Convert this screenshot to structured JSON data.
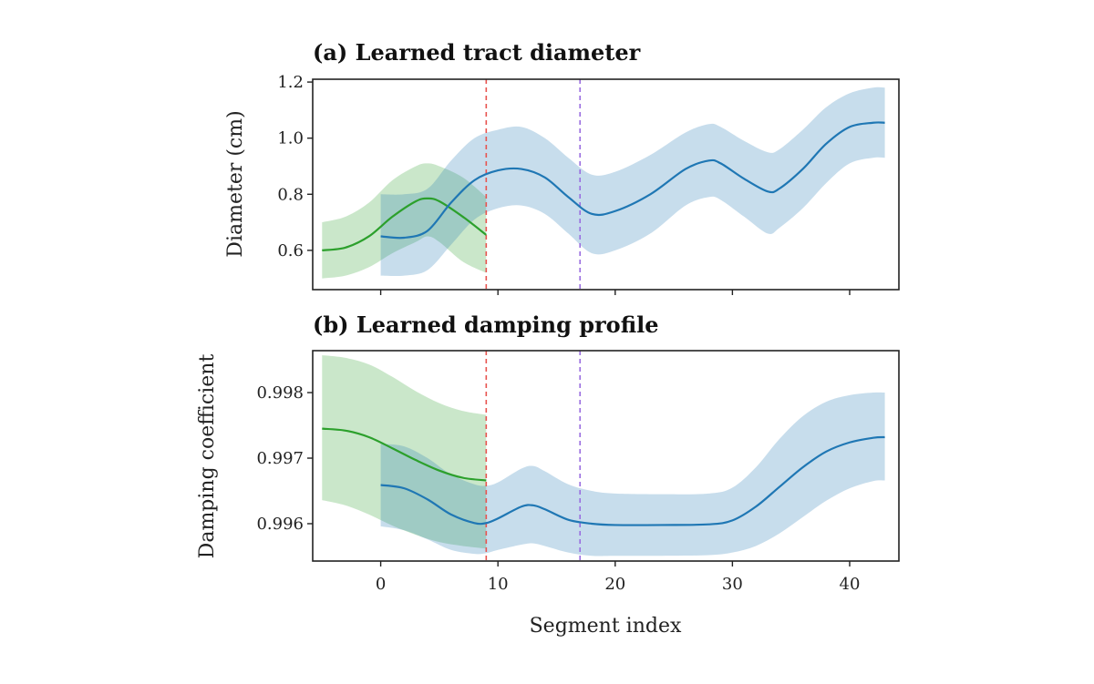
{
  "chart_data": [
    {
      "type": "line",
      "title": "(a) Learned tract diameter",
      "xlabel": "",
      "ylabel": "Diameter (cm)",
      "xlim": [
        -5.8,
        44.2
      ],
      "ylim": [
        0.46,
        1.21
      ],
      "xticks": [
        0,
        10,
        20,
        30,
        40
      ],
      "show_xtick_labels": false,
      "yticks": [
        0.6,
        0.8,
        1.0,
        1.2
      ],
      "ytick_labels": [
        "0.6",
        "0.8",
        "1.0",
        "1.2"
      ],
      "grid": false,
      "vlines": [
        {
          "x": 9,
          "color": "#e8534f"
        },
        {
          "x": 17,
          "color": "#9a6ee0"
        }
      ],
      "series": [
        {
          "color": "#2ca02c",
          "x": [
            -5,
            -3,
            -1,
            1,
            3,
            4,
            5,
            7,
            9
          ],
          "y": [
            0.6,
            0.61,
            0.65,
            0.72,
            0.775,
            0.785,
            0.775,
            0.72,
            0.655
          ],
          "lower": [
            0.5,
            0.51,
            0.54,
            0.59,
            0.63,
            0.65,
            0.63,
            0.56,
            0.52
          ],
          "upper": [
            0.7,
            0.72,
            0.77,
            0.85,
            0.9,
            0.91,
            0.9,
            0.86,
            0.79
          ]
        },
        {
          "color": "#1f77b4",
          "x": [
            0,
            2,
            4,
            6,
            8,
            10,
            12,
            14,
            16,
            18,
            20,
            23,
            26,
            28,
            29,
            31,
            33,
            34,
            36,
            38,
            40,
            42,
            43
          ],
          "y": [
            0.65,
            0.645,
            0.67,
            0.77,
            0.85,
            0.885,
            0.89,
            0.86,
            0.79,
            0.73,
            0.74,
            0.8,
            0.89,
            0.92,
            0.91,
            0.855,
            0.81,
            0.82,
            0.89,
            0.98,
            1.04,
            1.055,
            1.055
          ],
          "lower": [
            0.51,
            0.51,
            0.53,
            0.62,
            0.71,
            0.75,
            0.76,
            0.73,
            0.66,
            0.59,
            0.6,
            0.66,
            0.76,
            0.79,
            0.78,
            0.72,
            0.66,
            0.68,
            0.75,
            0.84,
            0.91,
            0.93,
            0.93
          ],
          "upper": [
            0.8,
            0.8,
            0.82,
            0.92,
            1.0,
            1.03,
            1.04,
            1.0,
            0.93,
            0.87,
            0.88,
            0.94,
            1.02,
            1.05,
            1.04,
            0.99,
            0.95,
            0.96,
            1.03,
            1.11,
            1.16,
            1.18,
            1.18
          ]
        }
      ]
    },
    {
      "type": "line",
      "title": "(b) Learned damping profile",
      "xlabel": "Segment index",
      "ylabel": "Damping coefficient",
      "xlim": [
        -5.8,
        44.2
      ],
      "ylim": [
        0.99543,
        0.99864
      ],
      "xticks": [
        0,
        10,
        20,
        30,
        40
      ],
      "xtick_labels": [
        "0",
        "10",
        "20",
        "30",
        "40"
      ],
      "show_xtick_labels": true,
      "yticks": [
        0.996,
        0.997,
        0.998
      ],
      "ytick_labels": [
        "0.996",
        "0.997",
        "0.998"
      ],
      "grid": false,
      "vlines": [
        {
          "x": 9,
          "color": "#e8534f"
        },
        {
          "x": 17,
          "color": "#9a6ee0"
        }
      ],
      "series": [
        {
          "color": "#2ca02c",
          "x": [
            -5,
            -3,
            -1,
            1,
            3,
            5,
            7,
            9
          ],
          "y": [
            0.99745,
            0.99742,
            0.99732,
            0.99715,
            0.99697,
            0.99681,
            0.9967,
            0.99666
          ],
          "lower": [
            0.99636,
            0.99628,
            0.99614,
            0.99597,
            0.99583,
            0.99572,
            0.99566,
            0.99562
          ],
          "upper": [
            0.99857,
            0.99853,
            0.99843,
            0.99824,
            0.99802,
            0.99784,
            0.99772,
            0.99766
          ]
        },
        {
          "color": "#1f77b4",
          "x": [
            0,
            2,
            4,
            6,
            8,
            9,
            10,
            12,
            13,
            14,
            16,
            18,
            20,
            24,
            28,
            30,
            32,
            34,
            36,
            38,
            40,
            42,
            43
          ],
          "y": [
            0.99659,
            0.99654,
            0.99637,
            0.99614,
            0.99601,
            0.99601,
            0.99608,
            0.99626,
            0.99628,
            0.99622,
            0.99606,
            0.996,
            0.99598,
            0.99598,
            0.99599,
            0.99605,
            0.99626,
            0.99656,
            0.99686,
            0.9971,
            0.99724,
            0.99731,
            0.99732
          ],
          "lower": [
            0.99596,
            0.9959,
            0.99576,
            0.9956,
            0.99554,
            0.99555,
            0.9956,
            0.99568,
            0.9957,
            0.99566,
            0.99556,
            0.99551,
            0.99551,
            0.99551,
            0.99552,
            0.99556,
            0.99566,
            0.99585,
            0.9961,
            0.99635,
            0.99654,
            0.99665,
            0.99666
          ],
          "upper": [
            0.99722,
            0.99718,
            0.997,
            0.99675,
            0.9966,
            0.99658,
            0.99663,
            0.99684,
            0.99688,
            0.9968,
            0.9966,
            0.9965,
            0.99646,
            0.99645,
            0.99646,
            0.99655,
            0.99686,
            0.99729,
            0.99764,
            0.99786,
            0.99796,
            0.998,
            0.998
          ]
        }
      ]
    }
  ]
}
